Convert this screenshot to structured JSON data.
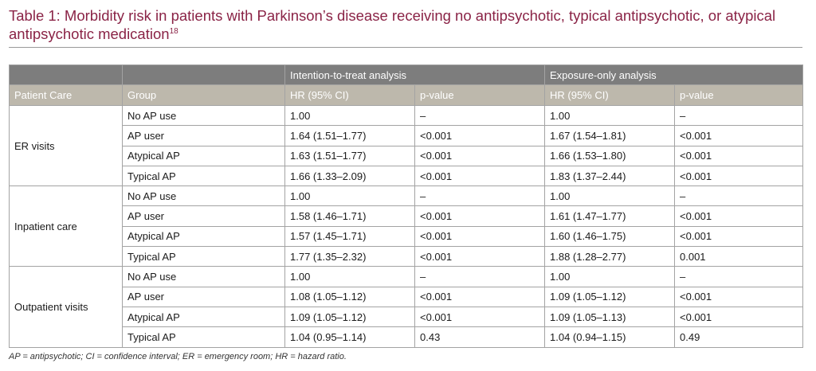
{
  "title": {
    "text": "Table 1: Morbidity risk in patients with Parkinson’s disease receiving no antipsychotic, typical antipsychotic, or atypical antipsychotic medication",
    "ref": "18"
  },
  "table": {
    "group_headers": [
      "Intention-to-treat analysis",
      "Exposure-only analysis"
    ],
    "columns": [
      "Patient Care",
      "Group",
      "HR (95% CI)",
      "p-value",
      "HR (95% CI)",
      "p-value"
    ],
    "sections": [
      {
        "label": "ER visits",
        "rows": [
          {
            "group": "No AP use",
            "itt_hr": "1.00",
            "itt_p": "–",
            "eo_hr": "1.00",
            "eo_p": "–"
          },
          {
            "group": "AP user",
            "itt_hr": "1.64 (1.51–1.77)",
            "itt_p": "<0.001",
            "eo_hr": "1.67 (1.54–1.81)",
            "eo_p": "<0.001"
          },
          {
            "group": "Atypical AP",
            "itt_hr": "1.63 (1.51–1.77)",
            "itt_p": "<0.001",
            "eo_hr": "1.66 (1.53–1.80)",
            "eo_p": "<0.001"
          },
          {
            "group": "Typical AP",
            "itt_hr": "1.66 (1.33–2.09)",
            "itt_p": "<0.001",
            "eo_hr": "1.83 (1.37–2.44)",
            "eo_p": "<0.001"
          }
        ]
      },
      {
        "label": "Inpatient care",
        "rows": [
          {
            "group": "No AP use",
            "itt_hr": "1.00",
            "itt_p": "–",
            "eo_hr": "1.00",
            "eo_p": "–"
          },
          {
            "group": "AP user",
            "itt_hr": "1.58 (1.46–1.71)",
            "itt_p": "<0.001",
            "eo_hr": "1.61 (1.47–1.77)",
            "eo_p": "<0.001"
          },
          {
            "group": "Atypical AP",
            "itt_hr": "1.57 (1.45–1.71)",
            "itt_p": "<0.001",
            "eo_hr": "1.60 (1.46–1.75)",
            "eo_p": "<0.001"
          },
          {
            "group": "Typical AP",
            "itt_hr": "1.77 (1.35–2.32)",
            "itt_p": "<0.001",
            "eo_hr": "1.88 (1.28–2.77)",
            "eo_p": "0.001"
          }
        ]
      },
      {
        "label": "Outpatient visits",
        "rows": [
          {
            "group": "No AP use",
            "itt_hr": "1.00",
            "itt_p": "–",
            "eo_hr": "1.00",
            "eo_p": "–"
          },
          {
            "group": "AP user",
            "itt_hr": "1.08 (1.05–1.12)",
            "itt_p": "<0.001",
            "eo_hr": "1.09 (1.05–1.12)",
            "eo_p": "<0.001"
          },
          {
            "group": "Atypical AP",
            "itt_hr": "1.09 (1.05–1.12)",
            "itt_p": "<0.001",
            "eo_hr": "1.09 (1.05–1.13)",
            "eo_p": "<0.001"
          },
          {
            "group": "Typical AP",
            "itt_hr": "1.04 (0.95–1.14)",
            "itt_p": "0.43",
            "eo_hr": "1.04 (0.94–1.15)",
            "eo_p": "0.49"
          }
        ]
      }
    ]
  },
  "footnote": "AP = antipsychotic; CI = confidence interval; ER = emergency room; HR = hazard ratio.",
  "colors": {
    "title": "#8a2346",
    "group_header_bg": "#7d7d7d",
    "column_header_bg": "#bdb8ac",
    "header_text": "#ffffff",
    "border": "#a3a3a3"
  }
}
